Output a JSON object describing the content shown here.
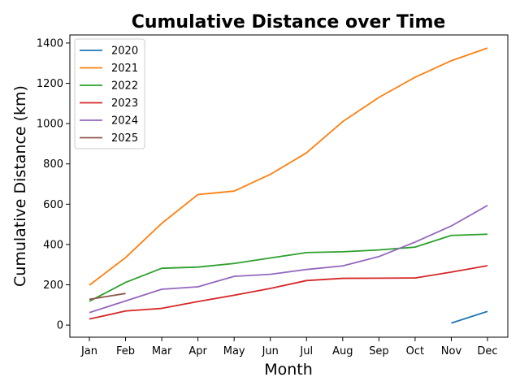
{
  "chart_data": {
    "type": "line",
    "title": "Cumulative Distance over Time",
    "xlabel": "Month",
    "ylabel": "Cumulative Distance (km)",
    "categories": [
      "Jan",
      "Feb",
      "Mar",
      "Apr",
      "May",
      "Jun",
      "Jul",
      "Aug",
      "Sep",
      "Oct",
      "Nov",
      "Dec"
    ],
    "ylim": [
      -60,
      1440
    ],
    "yticks": [
      0,
      200,
      400,
      600,
      800,
      1000,
      1200,
      1400
    ],
    "grid": false,
    "legend_position": "top-left",
    "series": [
      {
        "name": "2020",
        "color": "#1f77b4",
        "values": [
          null,
          null,
          null,
          null,
          null,
          null,
          null,
          null,
          null,
          null,
          10,
          68
        ]
      },
      {
        "name": "2021",
        "color": "#ff7f0e",
        "values": [
          198,
          335,
          505,
          648,
          665,
          748,
          855,
          1010,
          1130,
          1230,
          1312,
          1375
        ]
      },
      {
        "name": "2022",
        "color": "#2ca02c",
        "values": [
          118,
          212,
          282,
          288,
          306,
          333,
          360,
          364,
          373,
          387,
          445,
          451
        ]
      },
      {
        "name": "2023",
        "color": "#d62728",
        "values": [
          30,
          70,
          83,
          117,
          148,
          182,
          221,
          232,
          233,
          234,
          263,
          295
        ]
      },
      {
        "name": "2024",
        "color": "#9467bd",
        "values": [
          62,
          120,
          178,
          190,
          242,
          252,
          276,
          294,
          340,
          412,
          492,
          594
        ]
      },
      {
        "name": "2025",
        "color": "#8c564b",
        "values": [
          128,
          157,
          null,
          null,
          null,
          null,
          null,
          null,
          null,
          null,
          null,
          null
        ]
      }
    ]
  }
}
